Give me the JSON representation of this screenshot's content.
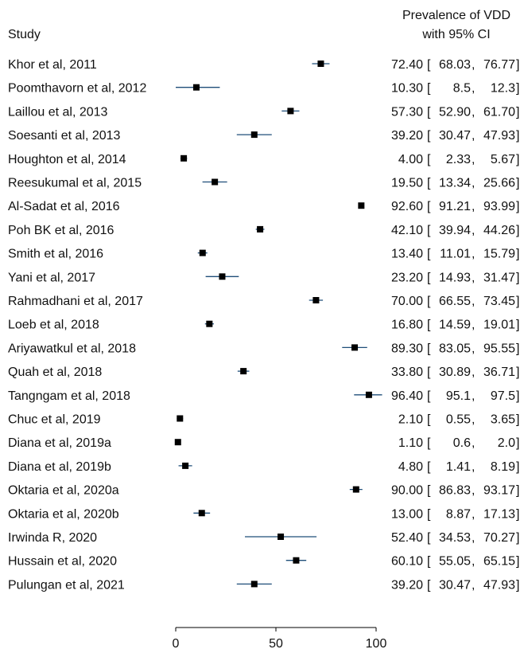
{
  "chart_data": {
    "type": "forest",
    "header": {
      "study_label": "Study",
      "estimate_label_line1": "Prevalence of VDD",
      "estimate_label_line2": "with 95% CI"
    },
    "xlim": [
      0,
      100
    ],
    "xticks": [
      0,
      50,
      100
    ],
    "colors": {
      "ci_line": "#1f4e79",
      "marker": "#000000",
      "axis": "#000000"
    },
    "studies": [
      {
        "name": "Khor et al, 2011",
        "estimate": 72.4,
        "lower": 68.03,
        "upper": 76.77,
        "est_text": "72.40",
        "lo_text": "68.03",
        "hi_text": "76.77"
      },
      {
        "name": "Poomthavorn et al, 2012",
        "estimate": 10.3,
        "lower": 8.5,
        "upper": 12.3,
        "ci_draw": [
          0,
          22
        ],
        "est_text": "10.30",
        "lo_text": "8.5",
        "hi_text": "12.3"
      },
      {
        "name": "Laillou et al, 2013",
        "estimate": 57.3,
        "lower": 52.9,
        "upper": 61.7,
        "est_text": "57.30",
        "lo_text": "52.90",
        "hi_text": "61.70"
      },
      {
        "name": "Soesanti et al, 2013",
        "estimate": 39.2,
        "lower": 30.47,
        "upper": 47.93,
        "est_text": "39.20",
        "lo_text": "30.47",
        "hi_text": "47.93"
      },
      {
        "name": "Houghton et al, 2014",
        "estimate": 4.0,
        "lower": 2.33,
        "upper": 5.67,
        "est_text": "4.00",
        "lo_text": "2.33",
        "hi_text": "5.67"
      },
      {
        "name": "Reesukumal et al, 2015",
        "estimate": 19.5,
        "lower": 13.34,
        "upper": 25.66,
        "est_text": "19.50",
        "lo_text": "13.34",
        "hi_text": "25.66"
      },
      {
        "name": "Al-Sadat et al, 2016",
        "estimate": 92.6,
        "lower": 91.21,
        "upper": 93.99,
        "est_text": "92.60",
        "lo_text": "91.21",
        "hi_text": "93.99"
      },
      {
        "name": "Poh BK et al, 2016",
        "estimate": 42.1,
        "lower": 39.94,
        "upper": 44.26,
        "est_text": "42.10",
        "lo_text": "39.94",
        "hi_text": "44.26"
      },
      {
        "name": "Smith et al, 2016",
        "estimate": 13.4,
        "lower": 11.01,
        "upper": 15.79,
        "est_text": "13.40",
        "lo_text": "11.01",
        "hi_text": "15.79"
      },
      {
        "name": "Yani et al, 2017",
        "estimate": 23.2,
        "lower": 14.93,
        "upper": 31.47,
        "est_text": "23.20",
        "lo_text": "14.93",
        "hi_text": "31.47"
      },
      {
        "name": "Rahmadhani et al, 2017",
        "estimate": 70.0,
        "lower": 66.55,
        "upper": 73.45,
        "est_text": "70.00",
        "lo_text": "66.55",
        "hi_text": "73.45"
      },
      {
        "name": "Loeb et al, 2018",
        "estimate": 16.8,
        "lower": 14.59,
        "upper": 19.01,
        "est_text": "16.80",
        "lo_text": "14.59",
        "hi_text": "19.01"
      },
      {
        "name": "Ariyawatkul et al, 2018",
        "estimate": 89.3,
        "lower": 83.05,
        "upper": 95.55,
        "est_text": "89.30",
        "lo_text": "83.05",
        "hi_text": "95.55"
      },
      {
        "name": "Quah et al, 2018",
        "estimate": 33.8,
        "lower": 30.89,
        "upper": 36.71,
        "est_text": "33.80",
        "lo_text": "30.89",
        "hi_text": "36.71"
      },
      {
        "name": "Tangngam et al, 2018",
        "estimate": 96.4,
        "lower": 95.1,
        "upper": 97.5,
        "ci_draw": [
          89,
          103
        ],
        "est_text": "96.40",
        "lo_text": "95.1",
        "hi_text": "97.5"
      },
      {
        "name": "Chuc et al, 2019",
        "estimate": 2.1,
        "lower": 0.55,
        "upper": 3.65,
        "est_text": "2.10",
        "lo_text": "0.55",
        "hi_text": "3.65"
      },
      {
        "name": "Diana et al, 2019a",
        "estimate": 1.1,
        "lower": 0.6,
        "upper": 2.0,
        "est_text": "1.10",
        "lo_text": "0.6",
        "hi_text": "2.0"
      },
      {
        "name": "Diana et al, 2019b",
        "estimate": 4.8,
        "lower": 1.41,
        "upper": 8.19,
        "est_text": "4.80",
        "lo_text": "1.41",
        "hi_text": "8.19"
      },
      {
        "name": "Oktaria et al, 2020a",
        "estimate": 90.0,
        "lower": 86.83,
        "upper": 93.17,
        "est_text": "90.00",
        "lo_text": "86.83",
        "hi_text": "93.17"
      },
      {
        "name": "Oktaria et al, 2020b",
        "estimate": 13.0,
        "lower": 8.87,
        "upper": 17.13,
        "est_text": "13.00",
        "lo_text": "8.87",
        "hi_text": "17.13"
      },
      {
        "name": "Irwinda R, 2020",
        "estimate": 52.4,
        "lower": 34.53,
        "upper": 70.27,
        "est_text": "52.40",
        "lo_text": "34.53",
        "hi_text": "70.27"
      },
      {
        "name": "Hussain et al, 2020",
        "estimate": 60.1,
        "lower": 55.05,
        "upper": 65.15,
        "est_text": "60.10",
        "lo_text": "55.05",
        "hi_text": "65.15"
      },
      {
        "name": "Pulungan et al, 2021",
        "estimate": 39.2,
        "lower": 30.47,
        "upper": 47.93,
        "est_text": "39.20",
        "lo_text": "30.47",
        "hi_text": "47.93"
      }
    ]
  }
}
